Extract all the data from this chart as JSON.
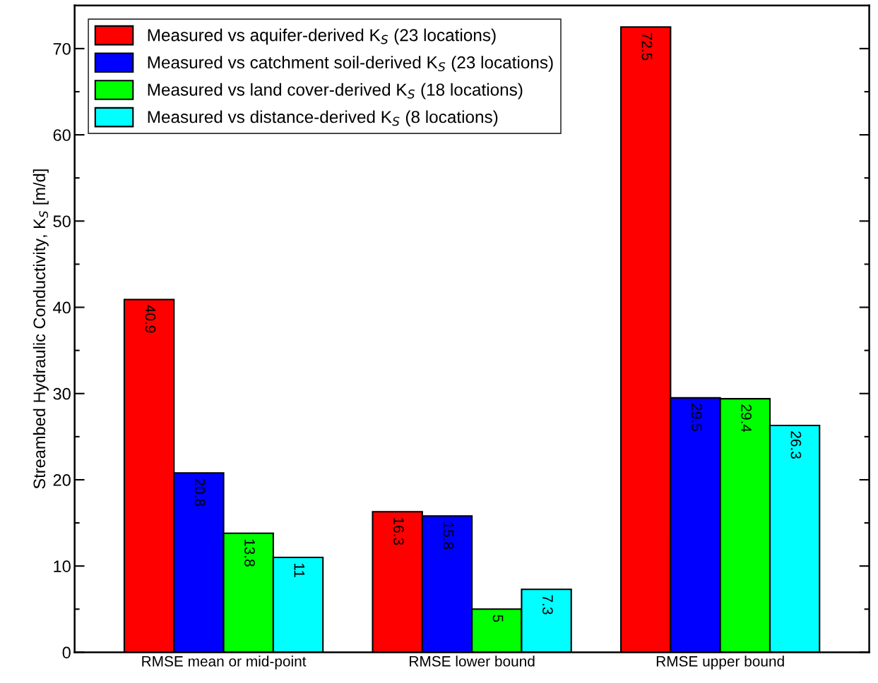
{
  "chart_data": {
    "type": "bar",
    "ylabel": "Streambed Hydraulic Conductivity, K$_{S}$ [m/d]",
    "categories": [
      "RMSE mean or mid-point",
      "RMSE lower bound",
      "RMSE upper bound"
    ],
    "series": [
      {
        "name": "Measured vs aquifer-derived K$_{S}$ (23 locations)",
        "color": "#ff0000",
        "values": [
          40.9,
          16.3,
          72.5
        ]
      },
      {
        "name": "Measured vs catchment soil-derived K$_{S}$ (23 locations)",
        "color": "#0000ff",
        "values": [
          20.8,
          15.8,
          29.5
        ]
      },
      {
        "name": "Measured vs land cover-derived K$_{S}$ (18 locations)",
        "color": "#00ff00",
        "values": [
          13.8,
          5,
          29.4
        ]
      },
      {
        "name": "Measured vs distance-derived K$_{S}$ (8 locations)",
        "color": "#00ffff",
        "values": [
          11,
          7.3,
          26.3
        ]
      }
    ],
    "ylim": [
      0,
      75
    ],
    "yticks": [
      0,
      {
        "value": 5,
        "label": null
      },
      10,
      {
        "value": 15,
        "label": null
      },
      20,
      {
        "value": 25,
        "label": null
      },
      30,
      {
        "value": 35,
        "label": null
      },
      40,
      {
        "value": 45,
        "label": null
      },
      50,
      {
        "value": 55,
        "label": null
      },
      60,
      {
        "value": 65,
        "label": null
      },
      70
    ],
    "data_labels": true,
    "legend": "top left",
    "grid": false
  }
}
